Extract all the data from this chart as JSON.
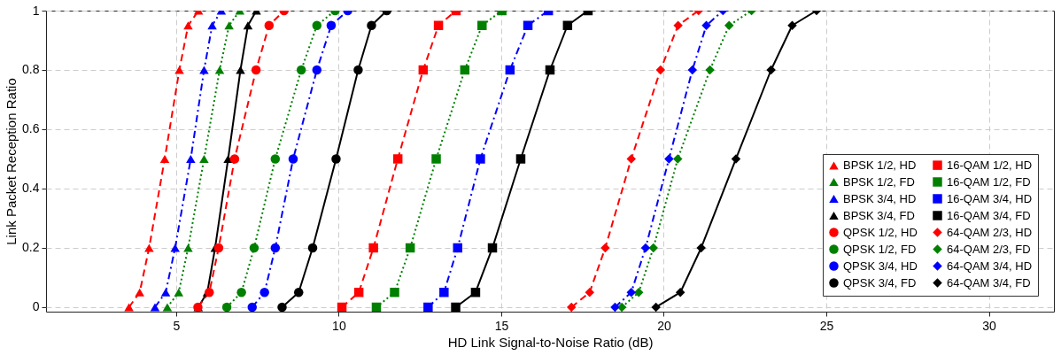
{
  "chart_data": {
    "type": "line",
    "xlabel": "HD Link Signal-to-Noise Ratio (dB)",
    "ylabel": "Link Packet Reception Ratio",
    "xlim": [
      1,
      32
    ],
    "ylim": [
      -0.015,
      1
    ],
    "xticks": [
      5,
      10,
      15,
      20,
      25,
      30
    ],
    "yticks": [
      0,
      0.2,
      0.4,
      0.6,
      0.8,
      1
    ],
    "grid": true,
    "legend": "bottom right",
    "series": [
      {
        "name": "BPSK 1/2, HD",
        "color": "#ff0000",
        "marker": "triangle",
        "line_style": "dashed",
        "x": [
          3.55,
          3.88,
          4.17,
          4.65,
          5.1,
          5.37,
          5.69
        ],
        "values": [
          0,
          0.05,
          0.2,
          0.5,
          0.8,
          0.95,
          1
        ]
      },
      {
        "name": "BPSK 1/2, FD",
        "color": "#008000",
        "marker": "triangle",
        "line_style": "dotted",
        "x": [
          4.73,
          5.08,
          5.37,
          5.86,
          6.34,
          6.63,
          6.96
        ],
        "values": [
          0,
          0.05,
          0.2,
          0.5,
          0.8,
          0.95,
          1
        ]
      },
      {
        "name": "BPSK 3/4, HD",
        "color": "#0000ff",
        "marker": "triangle",
        "line_style": "dashdot",
        "x": [
          4.35,
          4.68,
          4.97,
          5.45,
          5.86,
          6.11,
          6.39
        ],
        "values": [
          0,
          0.05,
          0.2,
          0.5,
          0.8,
          0.95,
          1
        ]
      },
      {
        "name": "BPSK 3/4, FD",
        "color": "#000000",
        "marker": "triangle",
        "line_style": "solid",
        "x": [
          5.68,
          5.96,
          6.2,
          6.6,
          6.98,
          7.21,
          7.47
        ],
        "values": [
          0,
          0.05,
          0.2,
          0.5,
          0.8,
          0.95,
          1
        ]
      },
      {
        "name": "QPSK 1/2, HD",
        "color": "#ff0000",
        "marker": "circle",
        "line_style": "dashed",
        "x": [
          5.67,
          6.02,
          6.31,
          6.8,
          7.46,
          7.86,
          8.32
        ],
        "values": [
          0,
          0.05,
          0.2,
          0.5,
          0.8,
          0.95,
          1
        ]
      },
      {
        "name": "QPSK 1/2, FD",
        "color": "#008000",
        "marker": "circle",
        "line_style": "dotted",
        "x": [
          6.56,
          7.01,
          7.4,
          8.05,
          8.85,
          9.33,
          9.89
        ],
        "values": [
          0,
          0.05,
          0.2,
          0.5,
          0.8,
          0.95,
          1
        ]
      },
      {
        "name": "QPSK 3/4, HD",
        "color": "#0000ff",
        "marker": "circle",
        "line_style": "dashdot",
        "x": [
          7.34,
          7.72,
          8.05,
          8.6,
          9.33,
          9.77,
          10.28
        ],
        "values": [
          0,
          0.05,
          0.2,
          0.5,
          0.8,
          0.95,
          1
        ]
      },
      {
        "name": "QPSK 3/4, FD",
        "color": "#000000",
        "marker": "circle",
        "line_style": "solid",
        "x": [
          8.26,
          8.77,
          9.2,
          9.92,
          10.6,
          11.01,
          11.48
        ],
        "values": [
          0,
          0.05,
          0.2,
          0.5,
          0.8,
          0.95,
          1
        ]
      },
      {
        "name": "16-QAM 1/2, HD",
        "color": "#ff0000",
        "marker": "square",
        "line_style": "dashed",
        "x": [
          10.1,
          10.62,
          11.07,
          11.82,
          12.6,
          13.07,
          13.61
        ],
        "values": [
          0,
          0.05,
          0.2,
          0.5,
          0.8,
          0.95,
          1
        ]
      },
      {
        "name": "16-QAM 1/2, FD",
        "color": "#008000",
        "marker": "square",
        "line_style": "dotted",
        "x": [
          11.16,
          11.72,
          12.2,
          13.0,
          13.88,
          14.41,
          15.02
        ],
        "values": [
          0,
          0.05,
          0.2,
          0.5,
          0.8,
          0.95,
          1
        ]
      },
      {
        "name": "16-QAM 3/4, HD",
        "color": "#0000ff",
        "marker": "square",
        "line_style": "dashdot",
        "x": [
          12.75,
          13.24,
          13.66,
          14.36,
          15.27,
          15.82,
          16.45
        ],
        "values": [
          0,
          0.05,
          0.2,
          0.5,
          0.8,
          0.95,
          1
        ]
      },
      {
        "name": "16-QAM 3/4, FD",
        "color": "#000000",
        "marker": "square",
        "line_style": "solid",
        "x": [
          13.6,
          14.21,
          14.73,
          15.6,
          16.5,
          17.04,
          17.67
        ],
        "values": [
          0,
          0.05,
          0.2,
          0.5,
          0.8,
          0.95,
          1
        ]
      },
      {
        "name": "64-QAM 2/3, HD",
        "color": "#ff0000",
        "marker": "diamond",
        "line_style": "dashed",
        "x": [
          17.16,
          17.72,
          18.2,
          19.0,
          19.9,
          20.44,
          21.07
        ],
        "values": [
          0,
          0.05,
          0.2,
          0.5,
          0.8,
          0.95,
          1
        ]
      },
      {
        "name": "64-QAM 2/3, FD",
        "color": "#008000",
        "marker": "diamond",
        "line_style": "dotted",
        "x": [
          18.71,
          19.23,
          19.68,
          20.43,
          21.42,
          22.01,
          22.7
        ],
        "values": [
          0,
          0.05,
          0.2,
          0.5,
          0.8,
          0.95,
          1
        ]
      },
      {
        "name": "64-QAM 3/4, HD",
        "color": "#0000ff",
        "marker": "diamond",
        "line_style": "dashdot",
        "x": [
          18.5,
          19.0,
          19.44,
          20.16,
          20.88,
          21.31,
          21.82
        ],
        "values": [
          0,
          0.05,
          0.2,
          0.5,
          0.8,
          0.95,
          1
        ]
      },
      {
        "name": "64-QAM 3/4, FD",
        "color": "#000000",
        "marker": "diamond",
        "line_style": "solid",
        "x": [
          19.76,
          20.51,
          21.15,
          22.22,
          23.3,
          23.95,
          24.7
        ],
        "values": [
          0,
          0.05,
          0.2,
          0.5,
          0.8,
          0.95,
          1
        ]
      }
    ]
  }
}
